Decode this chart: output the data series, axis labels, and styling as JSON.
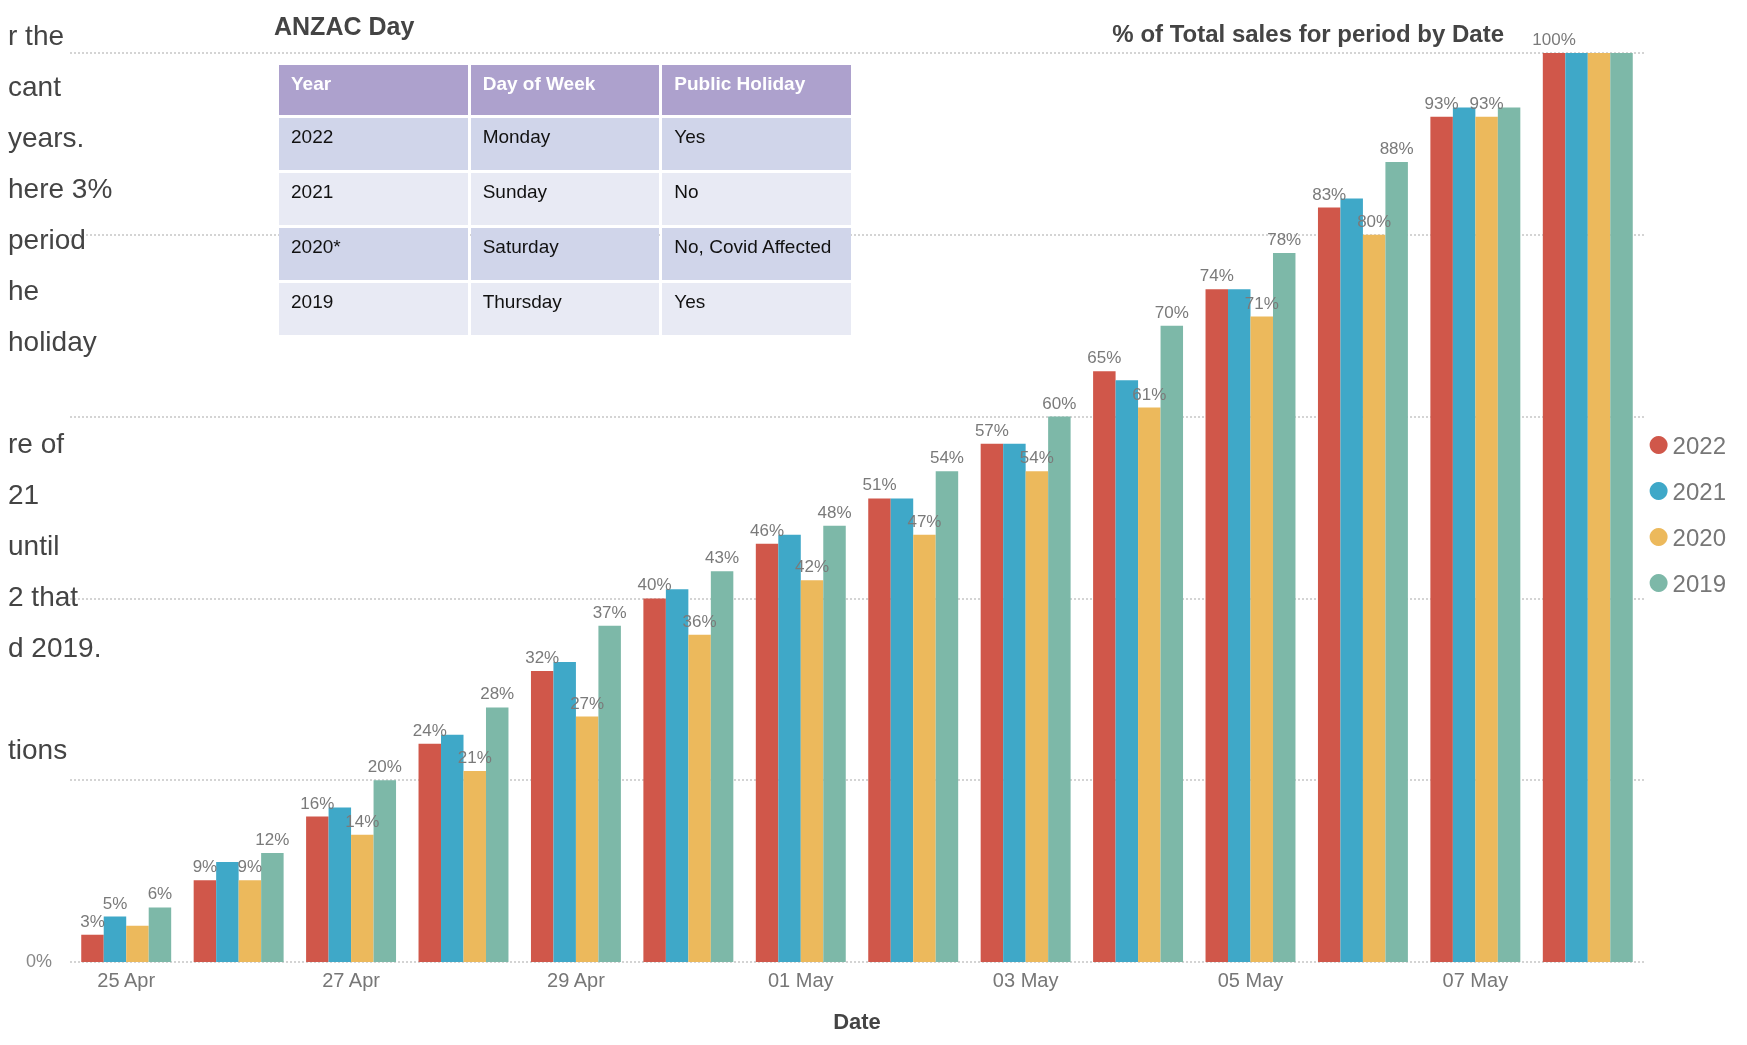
{
  "chart_data": {
    "type": "bar",
    "title": "% of Total sales for period by Date",
    "xlabel": "Date",
    "categories": [
      "25 Apr",
      null,
      "27 Apr",
      null,
      "29 Apr",
      null,
      "01 May",
      null,
      "03 May",
      null,
      "05 May",
      null,
      "07 May",
      null
    ],
    "series": [
      {
        "name": "2022",
        "color": "#d0574a",
        "values": [
          3,
          9,
          16,
          24,
          32,
          40,
          46,
          51,
          57,
          65,
          74,
          83,
          93,
          100
        ],
        "value_labels": [
          "3%",
          "9%",
          "16%",
          "24%",
          "32%",
          "40%",
          "46%",
          "51%",
          "57%",
          "65%",
          "74%",
          "83%",
          "93%",
          "100%"
        ]
      },
      {
        "name": "2021",
        "color": "#3fa8c8",
        "values": [
          5,
          11,
          17,
          25,
          33,
          41,
          47,
          51,
          57,
          64,
          74,
          84,
          94,
          100
        ],
        "value_labels": [
          "5%",
          null,
          null,
          null,
          null,
          null,
          null,
          null,
          null,
          null,
          null,
          null,
          null,
          null
        ]
      },
      {
        "name": "2020",
        "color": "#ecb95c",
        "values": [
          4,
          9,
          14,
          21,
          27,
          36,
          42,
          47,
          54,
          61,
          71,
          80,
          93,
          100
        ],
        "value_labels": [
          null,
          "9%",
          "14%",
          "21%",
          "27%",
          "36%",
          "42%",
          "47%",
          "54%",
          "61%",
          "71%",
          "80%",
          "93%",
          null
        ]
      },
      {
        "name": "2019",
        "color": "#7db8a8",
        "values": [
          6,
          12,
          20,
          28,
          37,
          43,
          48,
          54,
          60,
          70,
          78,
          88,
          94,
          100
        ],
        "value_labels": [
          "6%",
          "12%",
          "20%",
          "28%",
          "37%",
          "43%",
          "48%",
          "54%",
          "60%",
          "70%",
          "78%",
          "88%",
          null,
          null
        ]
      }
    ],
    "ylim": [
      0,
      100
    ],
    "grid": "y",
    "legend": "right",
    "annotations": [
      "r the\ncant\nyears.\nhere 3%\nperiod\nhe\nholiday\n\nre of\n21\nuntil\n2 that\nd 2019.\n\ntions",
      "ANZAC Day",
      "Year\tDay of Week\tPublic Holiday\n2022\tMonday\tYes\n2021\tSunday\tNo\n2020*\tSaturday\tNo, Covid Affected\n2019\tThursday\tYes",
      "0%"
    ]
  }
}
